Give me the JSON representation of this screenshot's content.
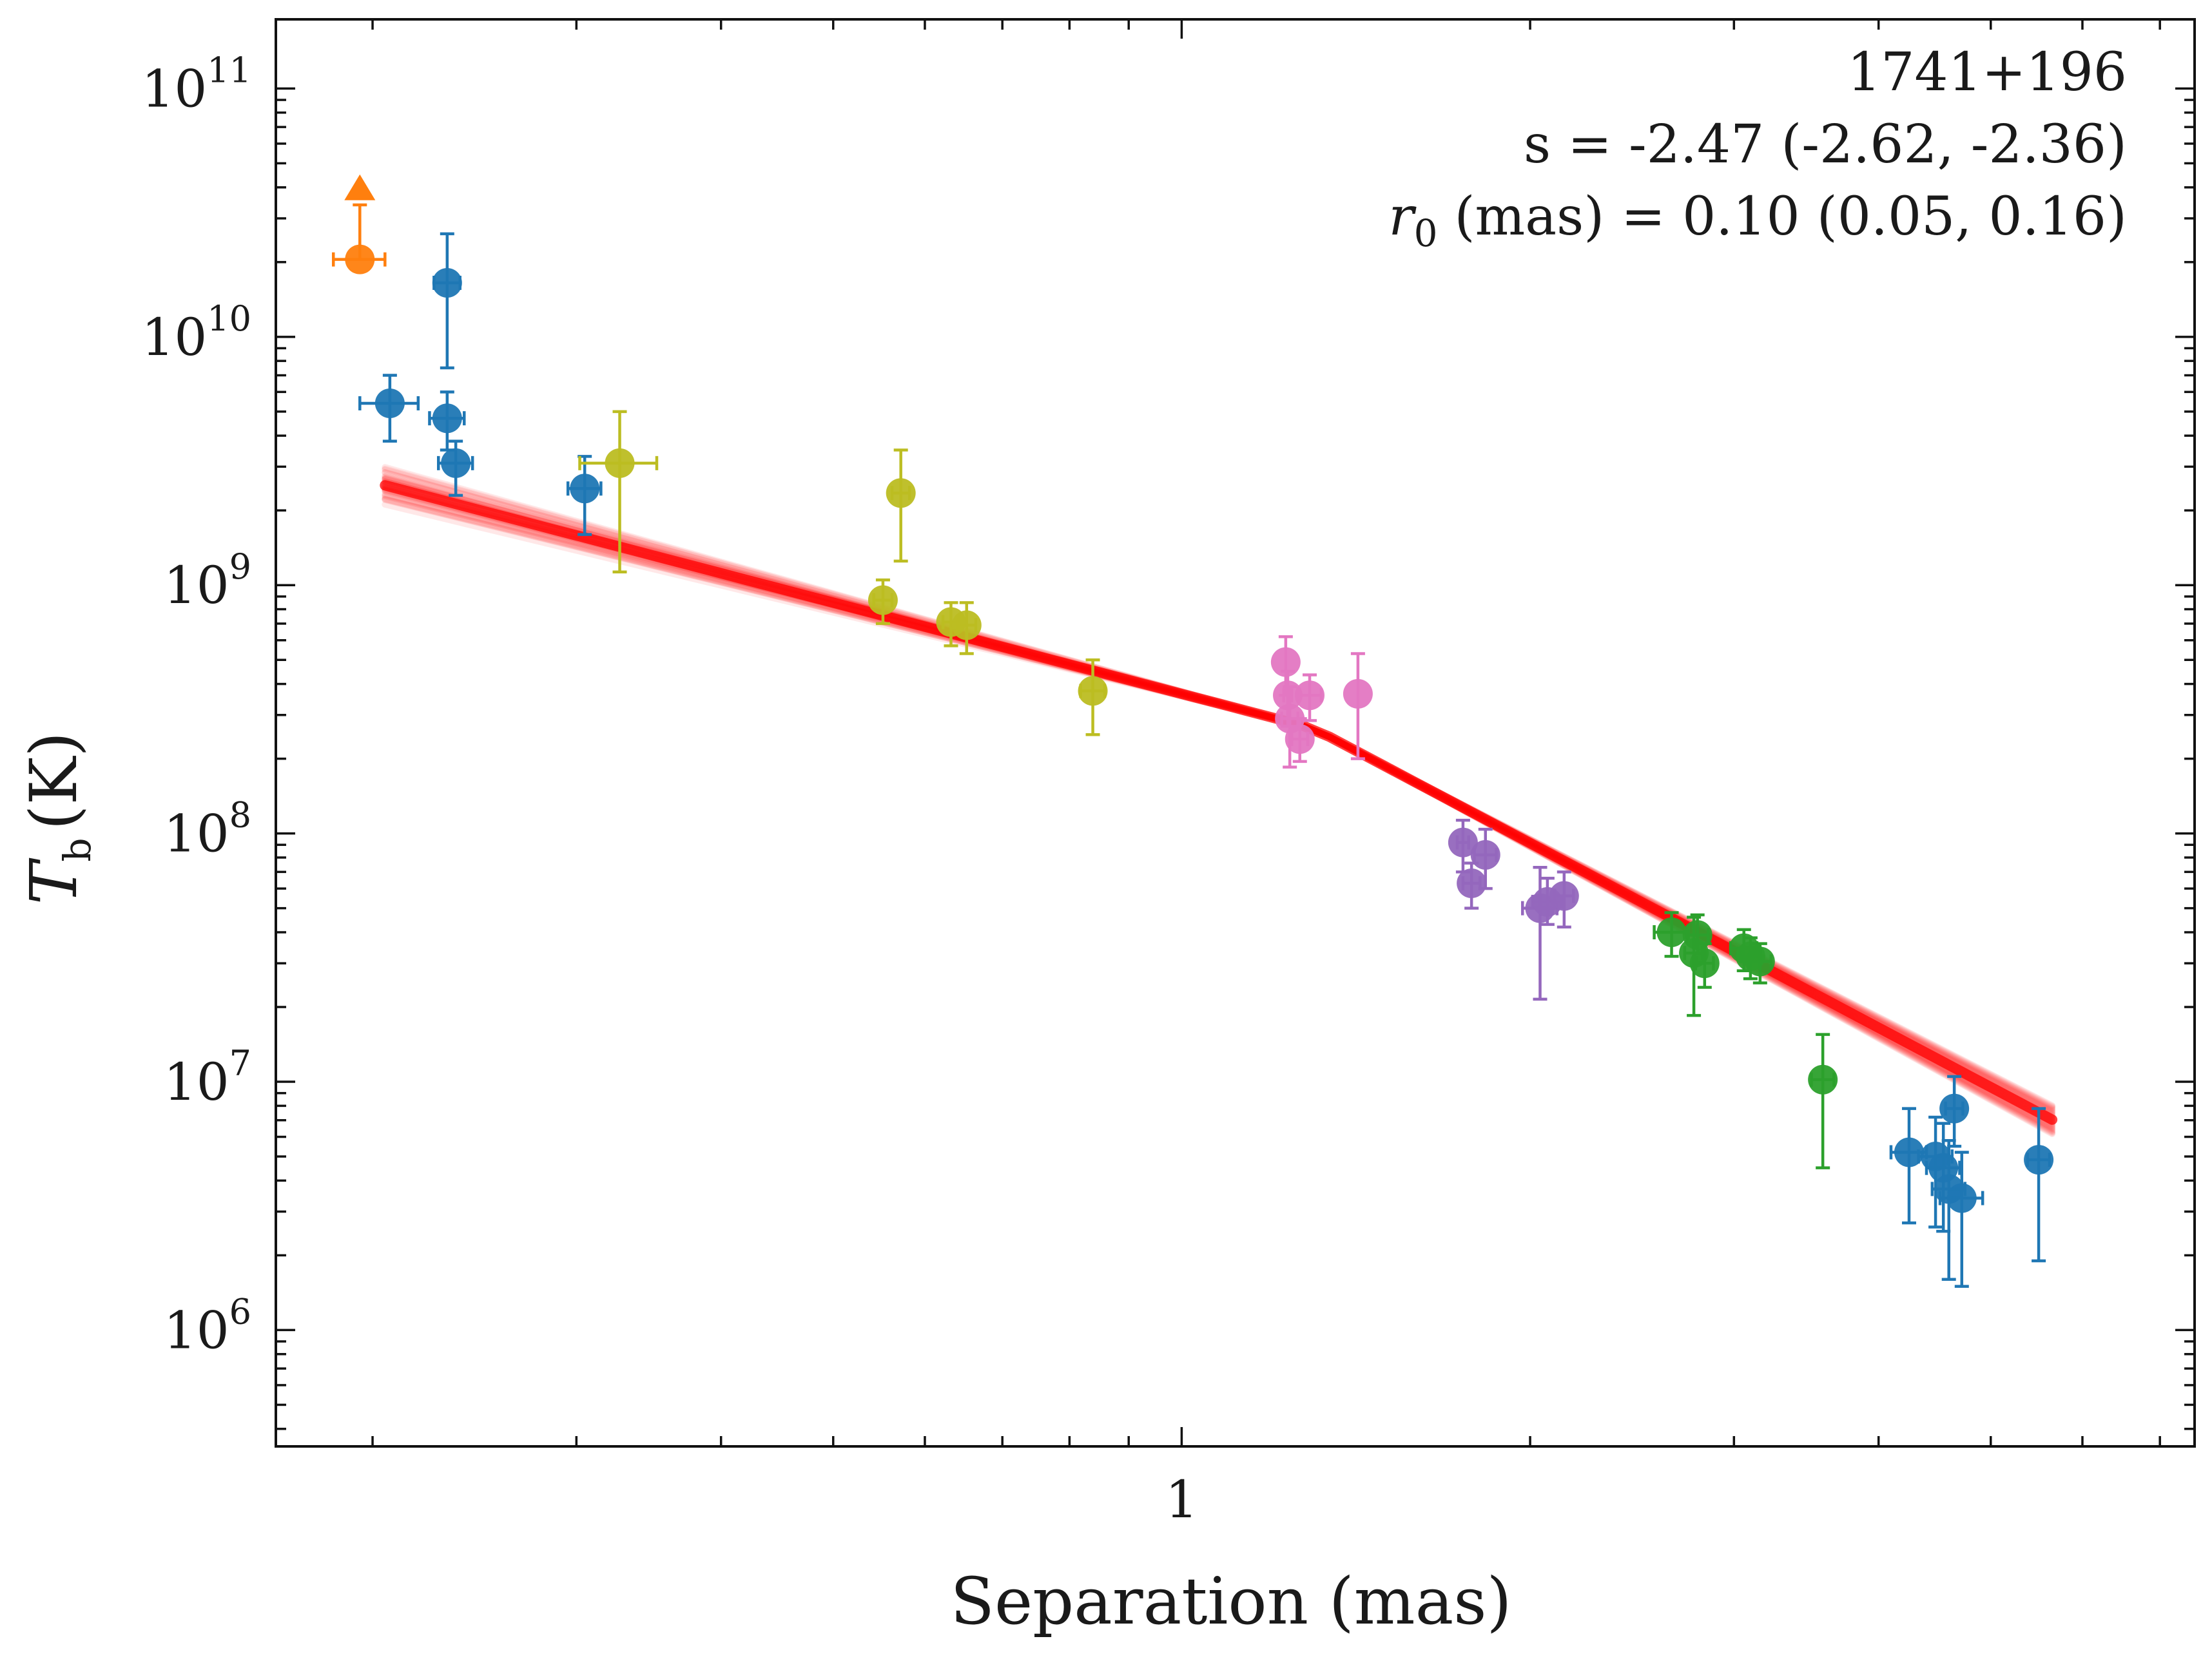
{
  "chart_data": {
    "type": "scatter",
    "xlabel": "Separation (mas)",
    "ylabel": "T_b (K)",
    "xscale": "log",
    "yscale": "log",
    "xlim": [
      0.165,
      7.5
    ],
    "ylim": [
      340000.0,
      190000000000.0
    ],
    "x_ticks": [
      {
        "value": 1,
        "label": "1"
      }
    ],
    "y_ticks": [
      {
        "value": 1000000.0,
        "base": "10",
        "exp": "6"
      },
      {
        "value": 10000000.0,
        "base": "10",
        "exp": "7"
      },
      {
        "value": 100000000.0,
        "base": "10",
        "exp": "8"
      },
      {
        "value": 1000000000.0,
        "base": "10",
        "exp": "9"
      },
      {
        "value": 10000000000.0,
        "base": "10",
        "exp": "10"
      },
      {
        "value": 100000000000.0,
        "base": "10",
        "exp": "11"
      }
    ],
    "annotations": {
      "source": "1741+196",
      "slope_text": "s = -2.47 (-2.62, -2.36)",
      "r0_symbol": "r",
      "r0_sub": "0",
      "r0_text": " (mas) = 0.10 (0.05, 0.16)"
    },
    "fit": {
      "color": "#ff0000",
      "slope": -2.47,
      "slope_lo": -2.62,
      "slope_hi": -2.36,
      "r0": 0.1,
      "r0_lo": 0.05,
      "r0_hi": 0.16,
      "knee_x": 1.3,
      "knee_y": 265000000.0,
      "slope_inner": -1.22,
      "x_range": [
        0.205,
        5.65
      ]
    },
    "limit_marker": {
      "x": 0.195,
      "y": 40000000000.0,
      "color": "#ff7f0e"
    },
    "series": [
      {
        "color": "#1f77b4",
        "points": [
          {
            "x": 0.207,
            "y": 5400000000.0,
            "xerr": 0.012,
            "ylo": 3800000000.0,
            "yhi": 7000000000.0
          },
          {
            "x": 0.232,
            "y": 16500000000.0,
            "xerr": 0.006,
            "ylo": 7500000000.0,
            "yhi": 26000000000.0
          },
          {
            "x": 0.232,
            "y": 4700000000.0,
            "xerr": 0.008,
            "ylo": 3500000000.0,
            "yhi": 6000000000.0
          },
          {
            "x": 0.236,
            "y": 3100000000.0,
            "xerr": 0.008,
            "ylo": 2300000000.0,
            "yhi": 3800000000.0
          },
          {
            "x": 0.305,
            "y": 2450000000.0,
            "xerr": 0.01,
            "ylo": 1600000000.0,
            "yhi": 3300000000.0
          },
          {
            "x": 4.25,
            "y": 5200000.0,
            "xerr": 0.15,
            "ylo": 2700000.0,
            "yhi": 7800000.0
          },
          {
            "x": 4.48,
            "y": 5000000.0,
            "xerr": 0.15,
            "ylo": 2600000.0,
            "yhi": 7200000.0
          },
          {
            "x": 4.55,
            "y": 4500000.0,
            "xerr": 0.15,
            "ylo": 2500000.0,
            "yhi": 6800000.0
          },
          {
            "x": 4.6,
            "y": 3700000.0,
            "xerr": 0.15,
            "ylo": 1600000.0,
            "yhi": 5800000.0
          },
          {
            "x": 4.65,
            "y": 7800000.0,
            "xerr": 0.08,
            "ylo": 5500000.0,
            "yhi": 10500000.0
          },
          {
            "x": 4.72,
            "y": 3400000.0,
            "xerr": 0.2,
            "ylo": 1500000.0,
            "yhi": 5200000.0
          },
          {
            "x": 5.5,
            "y": 4850000.0,
            "xerr": 0.12,
            "ylo": 1900000.0,
            "yhi": 7800000.0
          }
        ]
      },
      {
        "color": "#ff7f0e",
        "points": [
          {
            "x": 0.195,
            "y": 20500000000.0,
            "xerr": 0.01,
            "ylo": 20500000000.0,
            "yhi": 34000000000.0
          }
        ]
      },
      {
        "color": "#bcbd22",
        "points": [
          {
            "x": 0.327,
            "y": 3100000000.0,
            "xerr": 0.025,
            "ylo": 1130000000.0,
            "yhi": 5000000000.0
          },
          {
            "x": 0.572,
            "y": 2350000000.0,
            "xerr": 0.01,
            "ylo": 1250000000.0,
            "yhi": 3500000000.0
          },
          {
            "x": 0.552,
            "y": 870000000.0,
            "xerr": 0.01,
            "ylo": 700000000.0,
            "yhi": 1050000000.0
          },
          {
            "x": 0.632,
            "y": 710000000.0,
            "xerr": 0.01,
            "ylo": 570000000.0,
            "yhi": 850000000.0
          },
          {
            "x": 0.652,
            "y": 690000000.0,
            "xerr": 0.012,
            "ylo": 530000000.0,
            "yhi": 850000000.0
          },
          {
            "x": 0.838,
            "y": 375000000.0,
            "xerr": 0.02,
            "ylo": 250000000.0,
            "yhi": 500000000.0
          }
        ]
      },
      {
        "color": "#e377c2",
        "points": [
          {
            "x": 1.23,
            "y": 490000000.0,
            "xerr": 0.0,
            "ylo": 360000000.0,
            "yhi": 620000000.0
          },
          {
            "x": 1.235,
            "y": 360000000.0,
            "xerr": 0.01,
            "ylo": 270000000.0,
            "yhi": 450000000.0
          },
          {
            "x": 1.24,
            "y": 290000000.0,
            "xerr": 0.02,
            "ylo": 185000000.0,
            "yhi": 390000000.0
          },
          {
            "x": 1.265,
            "y": 240000000.0,
            "xerr": 0.02,
            "ylo": 195000000.0,
            "yhi": 290000000.0
          },
          {
            "x": 1.29,
            "y": 360000000.0,
            "xerr": 0.03,
            "ylo": 285000000.0,
            "yhi": 435000000.0
          },
          {
            "x": 1.42,
            "y": 365000000.0,
            "xerr": 0.0,
            "ylo": 200000000.0,
            "yhi": 530000000.0
          }
        ]
      },
      {
        "color": "#9467bd",
        "points": [
          {
            "x": 1.75,
            "y": 92000000.0,
            "xerr": 0.02,
            "ylo": 70000000.0,
            "yhi": 113000000.0
          },
          {
            "x": 1.83,
            "y": 82000000.0,
            "xerr": 0.04,
            "ylo": 60000000.0,
            "yhi": 104000000.0
          },
          {
            "x": 1.78,
            "y": 63000000.0,
            "xerr": 0.03,
            "ylo": 50000000.0,
            "yhi": 76000000.0
          },
          {
            "x": 2.04,
            "y": 50000000.0,
            "xerr": 0.07,
            "ylo": 21500000.0,
            "yhi": 73000000.0
          },
          {
            "x": 2.07,
            "y": 53000000.0,
            "xerr": 0.06,
            "ylo": 43000000.0,
            "yhi": 66000000.0
          },
          {
            "x": 2.14,
            "y": 56000000.0,
            "xerr": 0.04,
            "ylo": 42000000.0,
            "yhi": 70000000.0
          }
        ]
      },
      {
        "color": "#2ca02c",
        "points": [
          {
            "x": 2.65,
            "y": 40000000.0,
            "xerr": 0.09,
            "ylo": 32000000.0,
            "yhi": 48000000.0
          },
          {
            "x": 2.79,
            "y": 39000000.0,
            "xerr": 0.06,
            "ylo": 33000000.0,
            "yhi": 47000000.0
          },
          {
            "x": 2.77,
            "y": 33000000.0,
            "xerr": 0.05,
            "ylo": 18500000.0,
            "yhi": 46000000.0
          },
          {
            "x": 2.83,
            "y": 30000000.0,
            "xerr": 0.05,
            "ylo": 24000000.0,
            "yhi": 36000000.0
          },
          {
            "x": 3.06,
            "y": 34500000.0,
            "xerr": 0.08,
            "ylo": 28000000.0,
            "yhi": 41000000.0
          },
          {
            "x": 3.1,
            "y": 32000000.0,
            "xerr": 0.06,
            "ylo": 26000000.0,
            "yhi": 38000000.0
          },
          {
            "x": 3.16,
            "y": 30500000.0,
            "xerr": 0.07,
            "ylo": 25000000.0,
            "yhi": 36000000.0
          },
          {
            "x": 3.58,
            "y": 10200000.0,
            "xerr": 0.08,
            "ylo": 4500000.0,
            "yhi": 15500000.0
          }
        ]
      }
    ]
  }
}
